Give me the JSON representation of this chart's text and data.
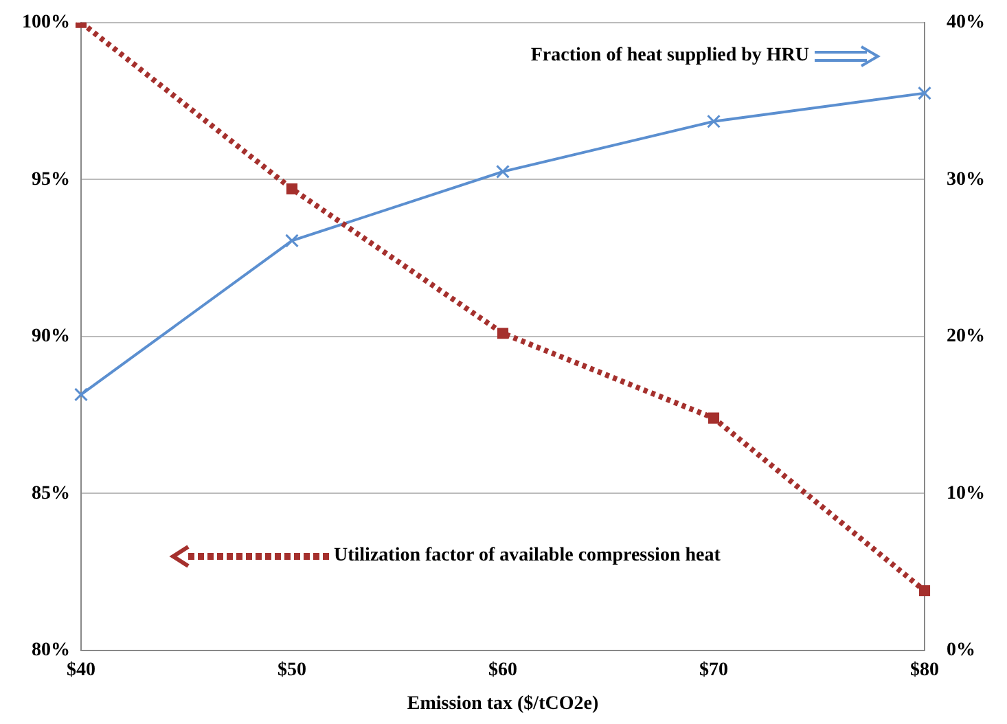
{
  "chart_data": {
    "type": "line",
    "xlabel": "Emission tax ($/tCO2e)",
    "categories": [
      "$40",
      "$50",
      "$60",
      "$70",
      "$80"
    ],
    "series": [
      {
        "name": "Utilization factor of available compression heat",
        "color": "#a5302d",
        "values": [
          100,
          94.7,
          90.1,
          87.4,
          81.9
        ],
        "marker": "square",
        "line_style": "dotted"
      },
      {
        "name": "Fraction of heat supplied by HRU",
        "color": "#5b8fd0",
        "values": [
          16.3,
          26.1,
          30.5,
          33.7,
          35.5
        ],
        "axis": "y2",
        "marker": "cross",
        "line_style": "solid"
      }
    ],
    "ylim": [
      80,
      100
    ],
    "yticks": [
      {
        "value": 80,
        "label": "80%"
      },
      {
        "value": 85,
        "label": "85%"
      },
      {
        "value": 90,
        "label": "90%"
      },
      {
        "value": 95,
        "label": "95%"
      },
      {
        "value": 100,
        "label": "100%"
      }
    ],
    "y2lim": [
      0,
      40
    ],
    "y2ticks": [
      {
        "value": 0,
        "label": "0%"
      },
      {
        "value": 10,
        "label": "10%"
      },
      {
        "value": 20,
        "label": "20%"
      },
      {
        "value": 30,
        "label": "30%"
      },
      {
        "value": 40,
        "label": "40%"
      }
    ],
    "grid": "y",
    "legend": "bottom left"
  }
}
